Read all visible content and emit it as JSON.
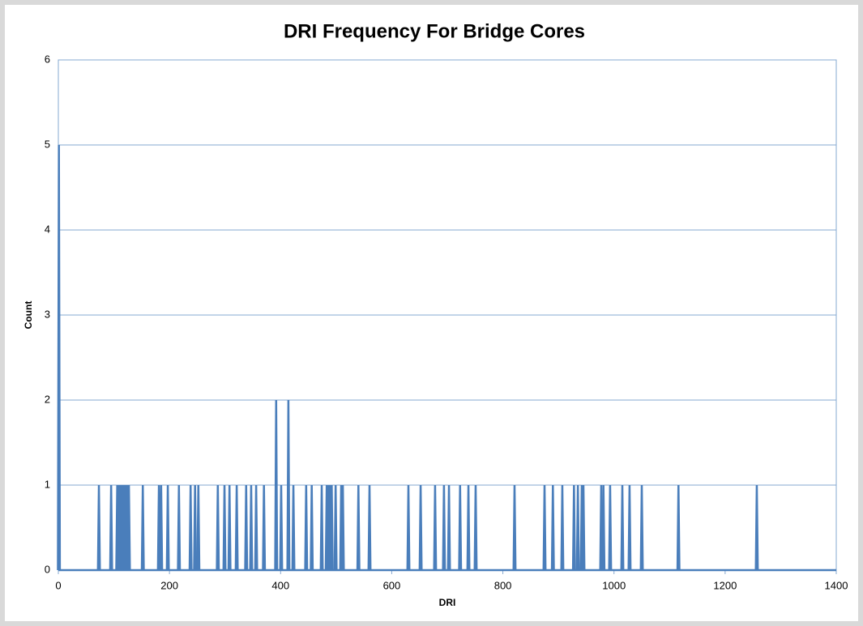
{
  "chart_data": {
    "type": "line",
    "title": "DRI Frequency For Bridge Cores",
    "x_label": "DRI",
    "y_label": "Count",
    "series": [
      {
        "name": "Count",
        "color": "#4a7ebb",
        "x": [
          1,
          73,
          95,
          106,
          109,
          112,
          115,
          118,
          121,
          124,
          127,
          152,
          181,
          185,
          197,
          217,
          238,
          246,
          252,
          287,
          299,
          308,
          321,
          338,
          347,
          356,
          370,
          392,
          401,
          414,
          423,
          446,
          456,
          474,
          483,
          486,
          489,
          492,
          499,
          509,
          512,
          540,
          560,
          630,
          652,
          678,
          694,
          703,
          723,
          738,
          751,
          821,
          875,
          890,
          907,
          928,
          935,
          942,
          945,
          977,
          981,
          993,
          1015,
          1028,
          1050,
          1116,
          1257
        ],
        "values": [
          5,
          1,
          1,
          1,
          1,
          1,
          1,
          1,
          1,
          1,
          1,
          1,
          1,
          1,
          1,
          1,
          1,
          1,
          1,
          1,
          1,
          1,
          1,
          1,
          1,
          1,
          1,
          2,
          1,
          2,
          1,
          1,
          1,
          1,
          1,
          1,
          1,
          1,
          1,
          1,
          1,
          1,
          1,
          1,
          1,
          1,
          1,
          1,
          1,
          1,
          1,
          1,
          1,
          1,
          1,
          1,
          1,
          1,
          1,
          1,
          1,
          1,
          1,
          1,
          1,
          1,
          1
        ]
      }
    ],
    "xlim": [
      0,
      1400
    ],
    "xticks": [
      0,
      200,
      400,
      600,
      800,
      1000,
      1200,
      1400
    ],
    "ylim": [
      0,
      6
    ],
    "yticks": [
      0,
      1,
      2,
      3,
      4,
      5,
      6
    ],
    "grid": true
  }
}
